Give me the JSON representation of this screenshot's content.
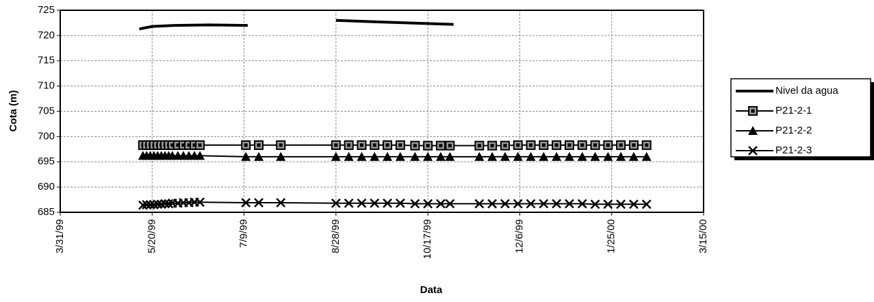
{
  "chart_data": {
    "type": "line",
    "xlabel": "Data",
    "ylabel": "Cota (m)",
    "xlim": [
      "1999-03-31",
      "2000-03-15"
    ],
    "xticks": [
      {
        "value": "1999-03-31",
        "label": "3/31/99"
      },
      {
        "value": "1999-05-20",
        "label": "5/20/99"
      },
      {
        "value": "1999-07-09",
        "label": "7/9/99"
      },
      {
        "value": "1999-08-28",
        "label": "8/28/99"
      },
      {
        "value": "1999-10-17",
        "label": "10/17/99"
      },
      {
        "value": "1999-12-06",
        "label": "12/6/99"
      },
      {
        "value": "2000-01-25",
        "label": "1/25/00"
      },
      {
        "value": "2000-03-15",
        "label": "3/15/00"
      }
    ],
    "ylim": [
      685,
      725
    ],
    "yticks": [
      685,
      690,
      695,
      700,
      705,
      710,
      715,
      720,
      725
    ],
    "grid": true,
    "legend": "right",
    "series": [
      {
        "name": "Nivel da agua",
        "color": "#000000",
        "marker": "none",
        "x": [
          "1999-05-13",
          "1999-05-20",
          "1999-06-01",
          "1999-06-20",
          "1999-07-11",
          "1999-08-01",
          "1999-08-28",
          "1999-09-20",
          "1999-10-31"
        ],
        "values": [
          721.3,
          721.8,
          722.0,
          722.1,
          722.0,
          null,
          723.0,
          722.7,
          722.2
        ]
      },
      {
        "name": "P21-2-1",
        "color": "#000000",
        "marker": "square",
        "x": [
          "1999-05-15",
          "1999-05-17",
          "1999-05-19",
          "1999-05-21",
          "1999-05-23",
          "1999-05-25",
          "1999-05-27",
          "1999-05-29",
          "1999-05-31",
          "1999-06-03",
          "1999-06-06",
          "1999-06-09",
          "1999-06-12",
          "1999-06-15",
          "1999-07-10",
          "1999-07-17",
          "1999-07-29",
          "1999-08-28",
          "1999-09-04",
          "1999-09-11",
          "1999-09-18",
          "1999-09-25",
          "1999-10-02",
          "1999-10-10",
          "1999-10-17",
          "1999-10-24",
          "1999-10-29",
          "1999-11-14",
          "1999-11-21",
          "1999-11-28",
          "1999-12-05",
          "1999-12-12",
          "1999-12-19",
          "1999-12-26",
          "2000-01-02",
          "2000-01-09",
          "2000-01-16",
          "2000-01-23",
          "2000-01-30",
          "2000-02-06",
          "2000-02-13"
        ],
        "values": [
          698.3,
          698.3,
          698.3,
          698.3,
          698.3,
          698.3,
          698.3,
          698.3,
          698.3,
          698.3,
          698.3,
          698.3,
          698.3,
          698.3,
          698.3,
          698.3,
          698.3,
          698.3,
          698.3,
          698.3,
          698.3,
          698.3,
          698.3,
          698.2,
          698.2,
          698.2,
          698.2,
          698.2,
          698.2,
          698.2,
          698.3,
          698.3,
          698.3,
          698.3,
          698.3,
          698.3,
          698.3,
          698.3,
          698.3,
          698.3,
          698.3
        ]
      },
      {
        "name": "P21-2-2",
        "color": "#000000",
        "marker": "triangle",
        "x": [
          "1999-05-15",
          "1999-05-17",
          "1999-05-19",
          "1999-05-21",
          "1999-05-23",
          "1999-05-25",
          "1999-05-27",
          "1999-05-29",
          "1999-05-31",
          "1999-06-03",
          "1999-06-06",
          "1999-06-09",
          "1999-06-12",
          "1999-06-15",
          "1999-07-10",
          "1999-07-17",
          "1999-07-29",
          "1999-08-28",
          "1999-09-04",
          "1999-09-11",
          "1999-09-18",
          "1999-09-25",
          "1999-10-02",
          "1999-10-10",
          "1999-10-17",
          "1999-10-24",
          "1999-10-29",
          "1999-11-14",
          "1999-11-21",
          "1999-11-28",
          "1999-12-05",
          "1999-12-12",
          "1999-12-19",
          "1999-12-26",
          "2000-01-02",
          "2000-01-09",
          "2000-01-16",
          "2000-01-23",
          "2000-01-30",
          "2000-02-06",
          "2000-02-13"
        ],
        "values": [
          696.2,
          696.2,
          696.2,
          696.2,
          696.2,
          696.2,
          696.2,
          696.2,
          696.2,
          696.2,
          696.2,
          696.2,
          696.2,
          696.2,
          696.0,
          696.0,
          696.0,
          696.0,
          696.0,
          696.0,
          696.0,
          696.0,
          696.0,
          696.0,
          696.0,
          696.0,
          696.0,
          696.0,
          696.0,
          696.0,
          696.0,
          696.0,
          696.0,
          696.0,
          696.0,
          696.0,
          696.0,
          696.0,
          696.0,
          696.0,
          696.0
        ]
      },
      {
        "name": "P21-2-3",
        "color": "#000000",
        "marker": "x",
        "x": [
          "1999-05-15",
          "1999-05-17",
          "1999-05-19",
          "1999-05-21",
          "1999-05-23",
          "1999-05-25",
          "1999-05-27",
          "1999-05-29",
          "1999-05-31",
          "1999-06-03",
          "1999-06-06",
          "1999-06-09",
          "1999-06-12",
          "1999-06-15",
          "1999-07-10",
          "1999-07-17",
          "1999-07-29",
          "1999-08-28",
          "1999-09-04",
          "1999-09-11",
          "1999-09-18",
          "1999-09-25",
          "1999-10-02",
          "1999-10-10",
          "1999-10-17",
          "1999-10-24",
          "1999-10-29",
          "1999-11-14",
          "1999-11-21",
          "1999-11-28",
          "1999-12-05",
          "1999-12-12",
          "1999-12-19",
          "1999-12-26",
          "2000-01-02",
          "2000-01-09",
          "2000-01-16",
          "2000-01-23",
          "2000-01-30",
          "2000-02-06",
          "2000-02-13"
        ],
        "values": [
          686.4,
          686.5,
          686.5,
          686.5,
          686.6,
          686.6,
          686.7,
          686.7,
          686.8,
          686.8,
          686.9,
          686.9,
          687.0,
          687.0,
          686.9,
          686.9,
          686.9,
          686.8,
          686.8,
          686.8,
          686.8,
          686.8,
          686.8,
          686.7,
          686.7,
          686.7,
          686.7,
          686.7,
          686.7,
          686.7,
          686.7,
          686.7,
          686.7,
          686.7,
          686.7,
          686.7,
          686.6,
          686.6,
          686.6,
          686.6,
          686.6
        ]
      }
    ]
  }
}
